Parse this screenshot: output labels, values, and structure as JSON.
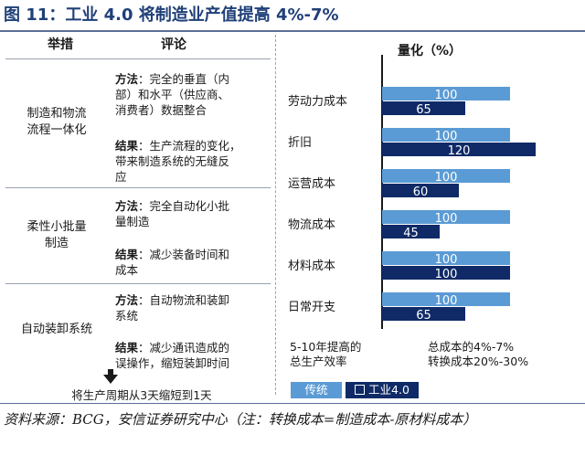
{
  "title": "图 11：工业 4.0 将制造业产值提高 4%-7%",
  "left_table": {
    "headers": {
      "measure": "举措",
      "comment": "评论"
    },
    "rows": [
      {
        "area": [
          "制造和物流",
          "流程一体化"
        ],
        "method_label": "方法",
        "method_text": [
          "：完全的垂直（内",
          "部）和水平（供应商、",
          "消费者）数据整合"
        ],
        "result_label": "结果",
        "result_text": [
          "：生产流程的变化，",
          "带来制造系统的无缝反",
          "应"
        ]
      },
      {
        "area": [
          "柔性小批量",
          "制造"
        ],
        "method_label": "方法",
        "method_text": [
          "：完全自动化小批",
          "量制造"
        ],
        "result_label": "结果",
        "result_text": [
          "：减少装备时间和",
          "成本"
        ]
      },
      {
        "area": [
          "自动装卸系统"
        ],
        "method_label": "方法",
        "method_text": [
          "：自动物流和装卸",
          "系统"
        ],
        "result_label": "结果",
        "result_text": [
          "：减少通讯造成的",
          "误操作，缩短装卸时间"
        ]
      }
    ],
    "cycle_note": "将生产周期从3天缩短到1天"
  },
  "chart_head": "量化（%）",
  "chart_data": {
    "type": "bar",
    "orientation": "horizontal",
    "title": "量化（%）",
    "categories": [
      "劳动力成本",
      "折旧",
      "运营成本",
      "物流成本",
      "材料成本",
      "日常开支"
    ],
    "series": [
      {
        "name": "传统",
        "color": "#5b9bd5",
        "values": [
          100,
          100,
          100,
          100,
          100,
          100
        ]
      },
      {
        "name": "工业4.0",
        "color": "#0f2a66",
        "values": [
          65,
          120,
          60,
          45,
          100,
          65
        ]
      }
    ],
    "xlim": [
      0,
      120
    ],
    "data_labels": true,
    "legend": [
      "传统",
      "工业4.0"
    ]
  },
  "summaries": {
    "left": [
      "5-10年提高的",
      "总生产效率"
    ],
    "right": [
      "总成本的4%-7%",
      "转换成本20%-30%"
    ]
  },
  "source": "资料来源：BCG，安信证券研究中心（注：转换成本=制造成本-原材料成本）"
}
